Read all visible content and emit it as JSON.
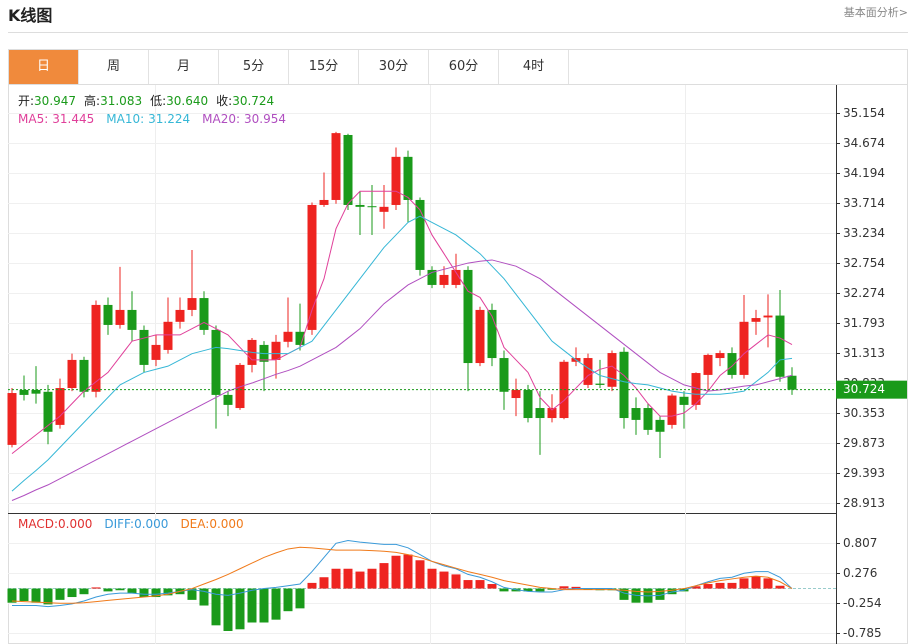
{
  "header": {
    "title": "K线图",
    "link": "基本面分析>"
  },
  "tabs": [
    "日",
    "周",
    "月",
    "5分",
    "15分",
    "30分",
    "60分",
    "4时"
  ],
  "active_tab": 0,
  "chart_data": [
    {
      "type": "candlestick",
      "info": [
        {
          "label": "开:",
          "value": "30.947"
        },
        {
          "label": "高:",
          "value": "31.083"
        },
        {
          "label": "低:",
          "value": "30.640"
        },
        {
          "label": "收:",
          "value": "30.724"
        }
      ],
      "info_value_color": "#1a9a1a",
      "up_color": "#ee2420",
      "down_color": "#1a9a1a",
      "open": [
        29.84,
        30.72,
        30.72,
        30.69,
        30.16,
        30.75,
        31.2,
        30.69,
        32.08,
        31.76,
        32.0,
        31.68,
        31.2,
        31.36,
        31.81,
        32.0,
        32.19,
        31.68,
        30.64,
        30.43,
        31.12,
        31.44,
        31.2,
        31.49,
        31.65,
        31.68,
        33.68,
        33.76,
        34.8,
        33.68,
        33.66,
        33.57,
        33.68,
        34.45,
        33.76,
        32.64,
        32.4,
        32.4,
        32.64,
        31.15,
        32.0,
        31.23,
        30.59,
        30.72,
        30.43,
        30.27,
        30.27,
        31.17,
        30.8,
        30.82,
        30.77,
        31.33,
        30.43,
        30.43,
        30.24,
        30.16,
        30.61,
        30.48,
        30.96,
        31.23,
        31.31,
        30.96,
        31.81,
        31.88,
        31.91,
        30.947
      ],
      "high": [
        30.75,
        30.95,
        31.1,
        30.8,
        30.9,
        31.3,
        31.25,
        32.15,
        32.2,
        32.69,
        32.3,
        31.75,
        31.6,
        32.2,
        32.2,
        32.96,
        32.3,
        31.75,
        30.7,
        31.15,
        31.55,
        31.5,
        31.6,
        32.2,
        32.1,
        33.72,
        34.2,
        34.85,
        34.82,
        33.9,
        34.0,
        34.0,
        34.6,
        34.55,
        33.8,
        32.7,
        32.7,
        32.9,
        32.7,
        32.05,
        32.1,
        31.35,
        30.9,
        30.8,
        30.7,
        30.65,
        31.2,
        31.4,
        31.3,
        31.2,
        31.35,
        31.4,
        30.6,
        30.5,
        30.3,
        30.66,
        30.7,
        31.0,
        31.3,
        31.35,
        31.4,
        32.24,
        32.0,
        32.25,
        32.32,
        31.083
      ],
      "low": [
        29.8,
        30.55,
        30.5,
        29.85,
        30.1,
        30.7,
        30.6,
        30.6,
        31.6,
        31.7,
        31.5,
        31.0,
        31.1,
        31.3,
        31.7,
        31.9,
        31.6,
        30.1,
        30.3,
        30.4,
        31.0,
        30.7,
        30.9,
        31.4,
        31.35,
        31.6,
        33.65,
        33.7,
        33.6,
        33.2,
        33.2,
        33.3,
        33.6,
        33.4,
        32.55,
        32.35,
        32.35,
        32.35,
        30.7,
        31.1,
        31.1,
        30.4,
        30.3,
        30.2,
        29.68,
        30.2,
        30.25,
        31.1,
        30.75,
        30.75,
        30.7,
        30.1,
        30.0,
        30.0,
        29.63,
        30.1,
        30.1,
        30.4,
        30.7,
        31.1,
        30.9,
        30.9,
        31.6,
        31.4,
        30.85,
        30.64
      ],
      "close": [
        30.67,
        30.64,
        30.66,
        30.05,
        30.75,
        31.2,
        30.69,
        32.08,
        31.76,
        32.0,
        31.68,
        31.12,
        31.44,
        31.81,
        32.0,
        32.19,
        31.68,
        30.64,
        30.48,
        31.12,
        31.52,
        31.17,
        31.49,
        31.65,
        31.44,
        33.68,
        33.76,
        34.83,
        33.68,
        33.65,
        33.65,
        33.65,
        34.45,
        33.76,
        32.64,
        32.4,
        32.56,
        32.64,
        31.15,
        32.0,
        31.23,
        30.69,
        30.72,
        30.27,
        30.27,
        30.43,
        31.17,
        31.23,
        31.23,
        30.8,
        31.31,
        30.27,
        30.24,
        30.08,
        30.05,
        30.63,
        30.48,
        30.99,
        31.28,
        31.31,
        30.96,
        31.81,
        31.87,
        31.91,
        30.93,
        30.724
      ],
      "series": [
        {
          "name": "MA5:",
          "label": "31.445",
          "color": "#e0409a",
          "values": [
            29.7,
            29.85,
            30.0,
            30.15,
            30.3,
            30.5,
            30.7,
            30.85,
            31.0,
            31.25,
            31.5,
            31.55,
            31.6,
            31.6,
            31.6,
            31.7,
            31.8,
            31.7,
            31.6,
            31.4,
            31.2,
            31.2,
            31.2,
            31.3,
            31.4,
            32.0,
            32.5,
            33.3,
            33.7,
            33.9,
            33.9,
            33.9,
            33.9,
            33.8,
            33.6,
            33.2,
            32.9,
            32.6,
            32.3,
            32.2,
            31.9,
            31.4,
            31.2,
            31.0,
            30.6,
            30.4,
            30.55,
            30.75,
            30.95,
            31.05,
            31.1,
            30.95,
            30.75,
            30.5,
            30.3,
            30.3,
            30.35,
            30.5,
            30.7,
            30.95,
            31.1,
            31.3,
            31.45,
            31.6,
            31.55,
            31.445
          ]
        },
        {
          "name": "MA10:",
          "label": "31.224",
          "color": "#36b7d6",
          "values": [
            29.1,
            29.27,
            29.43,
            29.6,
            29.8,
            30.0,
            30.2,
            30.4,
            30.6,
            30.8,
            30.9,
            31.0,
            31.05,
            31.1,
            31.2,
            31.3,
            31.35,
            31.4,
            31.38,
            31.35,
            31.32,
            31.3,
            31.3,
            31.3,
            31.4,
            31.5,
            31.75,
            32.0,
            32.25,
            32.5,
            32.75,
            33.0,
            33.2,
            33.4,
            33.5,
            33.4,
            33.3,
            33.2,
            33.05,
            32.9,
            32.7,
            32.5,
            32.25,
            32.0,
            31.75,
            31.5,
            31.35,
            31.2,
            31.07,
            30.95,
            30.9,
            30.85,
            30.82,
            30.8,
            30.75,
            30.7,
            30.67,
            30.65,
            30.65,
            30.65,
            30.67,
            30.7,
            30.85,
            31.0,
            31.2,
            31.224
          ]
        },
        {
          "name": "MA20:",
          "label": "30.954",
          "color": "#b04fc0",
          "values": [
            28.95,
            29.03,
            29.12,
            29.2,
            29.3,
            29.4,
            29.5,
            29.6,
            29.7,
            29.8,
            29.9,
            30.0,
            30.1,
            30.2,
            30.3,
            30.4,
            30.5,
            30.6,
            30.7,
            30.77,
            30.83,
            30.9,
            30.97,
            31.03,
            31.1,
            31.2,
            31.3,
            31.4,
            31.55,
            31.7,
            31.9,
            32.1,
            32.25,
            32.4,
            32.5,
            32.6,
            32.65,
            32.7,
            32.75,
            32.78,
            32.8,
            32.75,
            32.7,
            32.6,
            32.5,
            32.35,
            32.2,
            32.05,
            31.9,
            31.75,
            31.6,
            31.45,
            31.3,
            31.15,
            31.0,
            30.9,
            30.8,
            30.75,
            30.7,
            30.72,
            30.75,
            30.78,
            30.8,
            30.85,
            30.9,
            30.954
          ]
        }
      ],
      "ylim": [
        28.75,
        35.6
      ],
      "yticks": [
        35.154,
        34.674,
        34.194,
        33.714,
        33.234,
        32.754,
        32.274,
        31.793,
        31.313,
        30.833,
        30.353,
        29.873,
        29.393,
        28.913
      ],
      "grid": true
    },
    {
      "type": "macd",
      "up_color": "#ee2420",
      "down_color": "#1a9a1a",
      "series": [
        {
          "name": "MACD:",
          "label": "0.000",
          "color": "#e03030",
          "kind": "bar",
          "values": [
            -0.25,
            -0.22,
            -0.25,
            -0.28,
            -0.2,
            -0.15,
            -0.1,
            0.02,
            -0.05,
            -0.03,
            -0.08,
            -0.15,
            -0.15,
            -0.12,
            -0.1,
            -0.2,
            -0.3,
            -0.65,
            -0.75,
            -0.72,
            -0.6,
            -0.6,
            -0.55,
            -0.4,
            -0.35,
            0.1,
            0.2,
            0.35,
            0.35,
            0.3,
            0.35,
            0.45,
            0.58,
            0.6,
            0.5,
            0.35,
            0.3,
            0.25,
            0.15,
            0.15,
            0.08,
            -0.05,
            -0.05,
            -0.05,
            -0.05,
            -0.02,
            0.04,
            0.03,
            -0.02,
            -0.03,
            -0.03,
            -0.2,
            -0.25,
            -0.25,
            -0.2,
            -0.1,
            -0.05,
            0.04,
            0.08,
            0.1,
            0.1,
            0.18,
            0.22,
            0.18,
            0.05,
            0.0
          ]
        },
        {
          "name": "DIFF:",
          "label": "0.000",
          "color": "#3a9ad9",
          "kind": "line",
          "values": [
            -0.3,
            -0.3,
            -0.3,
            -0.32,
            -0.3,
            -0.27,
            -0.22,
            -0.15,
            -0.1,
            -0.08,
            -0.08,
            -0.1,
            -0.1,
            -0.08,
            -0.05,
            -0.02,
            -0.05,
            -0.1,
            -0.12,
            -0.08,
            -0.03,
            0.0,
            0.02,
            0.05,
            0.08,
            0.3,
            0.55,
            0.8,
            0.85,
            0.82,
            0.8,
            0.78,
            0.78,
            0.72,
            0.6,
            0.48,
            0.4,
            0.35,
            0.25,
            0.2,
            0.12,
            0.02,
            -0.02,
            -0.05,
            -0.06,
            -0.06,
            -0.02,
            0.0,
            0.0,
            0.0,
            0.0,
            -0.08,
            -0.12,
            -0.13,
            -0.12,
            -0.06,
            -0.03,
            0.05,
            0.12,
            0.18,
            0.2,
            0.27,
            0.3,
            0.3,
            0.2,
            0.0
          ]
        },
        {
          "name": "DEA:",
          "label": "0.000",
          "color": "#f07a1a",
          "kind": "line",
          "values": [
            -0.22,
            -0.23,
            -0.24,
            -0.25,
            -0.26,
            -0.26,
            -0.25,
            -0.23,
            -0.21,
            -0.19,
            -0.17,
            -0.15,
            -0.13,
            -0.1,
            -0.05,
            0.0,
            0.08,
            0.16,
            0.25,
            0.35,
            0.45,
            0.55,
            0.63,
            0.7,
            0.73,
            0.72,
            0.7,
            0.68,
            0.68,
            0.68,
            0.67,
            0.66,
            0.64,
            0.6,
            0.55,
            0.48,
            0.42,
            0.36,
            0.3,
            0.25,
            0.2,
            0.14,
            0.1,
            0.06,
            0.02,
            0.0,
            -0.02,
            -0.02,
            -0.02,
            -0.02,
            -0.02,
            -0.03,
            -0.05,
            -0.06,
            -0.05,
            -0.03,
            0.0,
            0.05,
            0.1,
            0.14,
            0.17,
            0.2,
            0.22,
            0.2,
            0.12,
            0.0
          ]
        }
      ],
      "ylim": [
        -0.98,
        1.3
      ],
      "yticks": [
        0.807,
        0.276,
        -0.254,
        -0.785
      ],
      "grid": true
    }
  ]
}
